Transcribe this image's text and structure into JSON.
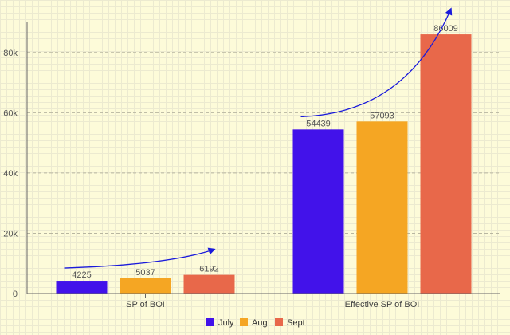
{
  "chart_data": {
    "type": "bar",
    "categories": [
      "SP of BOI",
      "Effective SP of BOI"
    ],
    "series": [
      {
        "name": "July",
        "values": [
          4225,
          54439
        ],
        "color": "#4212ea"
      },
      {
        "name": "Aug",
        "values": [
          5037,
          57093
        ],
        "color": "#f5a623"
      },
      {
        "name": "Sept",
        "values": [
          6192,
          86009
        ],
        "color": "#e8684a"
      }
    ],
    "title": "",
    "xlabel": "",
    "ylabel": "",
    "ylim": [
      0,
      90000
    ],
    "yticks": [
      0,
      20000,
      40000,
      60000,
      80000
    ],
    "ytick_labels": [
      "0",
      "20k",
      "40k",
      "60k",
      "80k"
    ],
    "grid": "horizontal-dashed",
    "legend": "bottom-center",
    "annotations": "upward-trend-arrows"
  }
}
